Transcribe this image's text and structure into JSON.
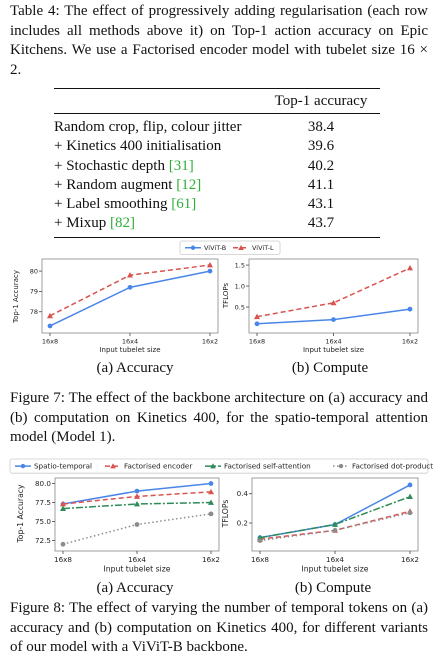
{
  "table4": {
    "caption_label": "Table 4:",
    "caption_text": "The effect of progressively adding regularisation (each row includes all methods above it) on Top-1 action accuracy on Epic Kitchens. We use a Factorised encoder model with tubelet size 16 × 2.",
    "header": "Top-1 accuracy",
    "rows": [
      {
        "label": "Random crop, flip, colour jitter",
        "ref": "",
        "value": "38.4"
      },
      {
        "label": "+ Kinetics 400 initialisation",
        "ref": "",
        "value": "39.6"
      },
      {
        "label": "+ Stochastic depth ",
        "ref": "[31]",
        "value": "40.2"
      },
      {
        "label": "+ Random augment ",
        "ref": "[12]",
        "value": "41.1"
      },
      {
        "label": "+ Label smoothing ",
        "ref": "[61]",
        "value": "43.1"
      },
      {
        "label": "+ Mixup ",
        "ref": "[82]",
        "value": "43.7"
      }
    ]
  },
  "figure7": {
    "caption_label": "Figure 7:",
    "caption_text": "The effect of the backbone architecture on (a) accuracy and (b) computation on Kinetics 400, for the spatio-temporal attention model (Model 1).",
    "sub_a": "(a) Accuracy",
    "sub_b": "(b) Compute"
  },
  "figure8": {
    "caption_label": "Figure 8:",
    "caption_text": "The effect of varying the number of temporal tokens on (a) accuracy and (b) computation on Kinetics 400, for different variants of our model with a ViViT-B backbone.",
    "sub_a": "(a) Accuracy",
    "sub_b": "(b) Compute"
  },
  "chart_data": [
    {
      "id": "fig7a",
      "type": "line",
      "xlabel": "Input tubelet size",
      "ylabel": "Top-1 Accuracy",
      "categories": [
        "16x8",
        "16x4",
        "16x2"
      ],
      "ylim": [
        77.2,
        80.3
      ],
      "yticks": [
        78,
        79,
        80
      ],
      "legend": "top-center",
      "series": [
        {
          "name": "ViViT-B",
          "values": [
            77.3,
            79.2,
            80.0
          ],
          "color": "#4a86e8",
          "dash": "",
          "marker": "dot"
        },
        {
          "name": "ViViT-L",
          "values": [
            77.8,
            79.8,
            80.3
          ],
          "color": "#d9534f",
          "dash": "5,3",
          "marker": "triangle"
        }
      ]
    },
    {
      "id": "fig7b",
      "type": "line",
      "xlabel": "Input tubelet size",
      "ylabel": "TFLOPs",
      "categories": [
        "16x8",
        "16x4",
        "16x2"
      ],
      "ylim": [
        0.0,
        1.55
      ],
      "yticks": [
        0.5,
        1.0,
        1.5
      ],
      "series": [
        {
          "name": "ViViT-B",
          "values": [
            0.1,
            0.2,
            0.45
          ],
          "color": "#4a86e8",
          "dash": "",
          "marker": "dot"
        },
        {
          "name": "ViViT-L",
          "values": [
            0.27,
            0.6,
            1.43
          ],
          "color": "#d9534f",
          "dash": "5,3",
          "marker": "triangle"
        }
      ]
    },
    {
      "id": "fig8a",
      "type": "line",
      "xlabel": "Input tubelet size",
      "ylabel": "Top-1 Accuracy",
      "categories": [
        "16x8",
        "16x4",
        "16x2"
      ],
      "ylim": [
        71.9,
        80.2
      ],
      "yticks": [
        72.5,
        75.0,
        77.5,
        80.0
      ],
      "legend": "top",
      "series": [
        {
          "name": "Spatio-temporal",
          "values": [
            77.3,
            79.0,
            80.0
          ],
          "color": "#4a86e8",
          "dash": "",
          "marker": "dot"
        },
        {
          "name": "Factorised encoder",
          "values": [
            77.3,
            78.3,
            78.9
          ],
          "color": "#d9534f",
          "dash": "5,3",
          "marker": "triangle"
        },
        {
          "name": "Factorised self-attention",
          "values": [
            76.7,
            77.3,
            77.5
          ],
          "color": "#2e8b57",
          "dash": "7,2,2,2",
          "marker": "triangle"
        },
        {
          "name": "Factorised dot-product",
          "values": [
            72.0,
            74.6,
            76.0
          ],
          "color": "#8c8c8c",
          "dash": "1.5,2.5",
          "marker": "dot"
        }
      ]
    },
    {
      "id": "fig8b",
      "type": "line",
      "xlabel": "Input tubelet size",
      "ylabel": "TFLOPs",
      "categories": [
        "16x8",
        "16x4",
        "16x2"
      ],
      "ylim": [
        0.05,
        0.48
      ],
      "yticks": [
        0.2,
        0.4
      ],
      "series": [
        {
          "name": "Spatio-temporal",
          "values": [
            0.1,
            0.19,
            0.46
          ],
          "color": "#4a86e8",
          "dash": "",
          "marker": "dot"
        },
        {
          "name": "Factorised encoder",
          "values": [
            0.09,
            0.15,
            0.28
          ],
          "color": "#d9534f",
          "dash": "5,3",
          "marker": "triangle"
        },
        {
          "name": "Factorised self-attention",
          "values": [
            0.1,
            0.19,
            0.38
          ],
          "color": "#2e8b57",
          "dash": "7,2,2,2",
          "marker": "triangle"
        },
        {
          "name": "Factorised dot-product",
          "values": [
            0.08,
            0.15,
            0.27
          ],
          "color": "#8c8c8c",
          "dash": "1.5,2.5",
          "marker": "dot"
        }
      ]
    }
  ]
}
